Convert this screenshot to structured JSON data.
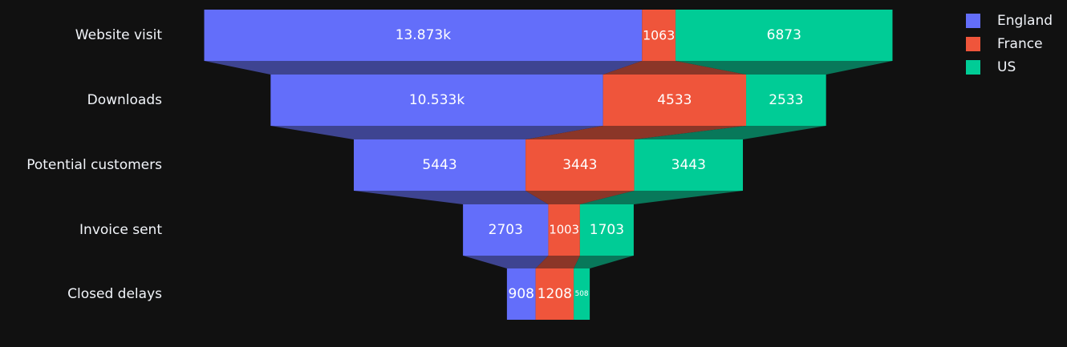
{
  "chart_data": {
    "type": "funnel",
    "categories": [
      "Website visit",
      "Downloads",
      "Potential customers",
      "Invoice sent",
      "Closed delays"
    ],
    "series": [
      {
        "name": "England",
        "color": "#636efa",
        "values": [
          13873,
          10533,
          5443,
          2703,
          908
        ],
        "labels": [
          "13.873k",
          "10.533k",
          "5443",
          "2703",
          "908"
        ]
      },
      {
        "name": "France",
        "color": "#ef553b",
        "values": [
          1063,
          4533,
          3443,
          1003,
          1208
        ],
        "labels": [
          "1063",
          "4533",
          "3443",
          "1003",
          "1208"
        ]
      },
      {
        "name": "US",
        "color": "#00cc96",
        "values": [
          6873,
          2533,
          3443,
          1703,
          508
        ],
        "labels": [
          "6873",
          "2533",
          "3443",
          "1703",
          "508"
        ]
      }
    ],
    "legend_position": "top-right",
    "background": "#111111"
  }
}
